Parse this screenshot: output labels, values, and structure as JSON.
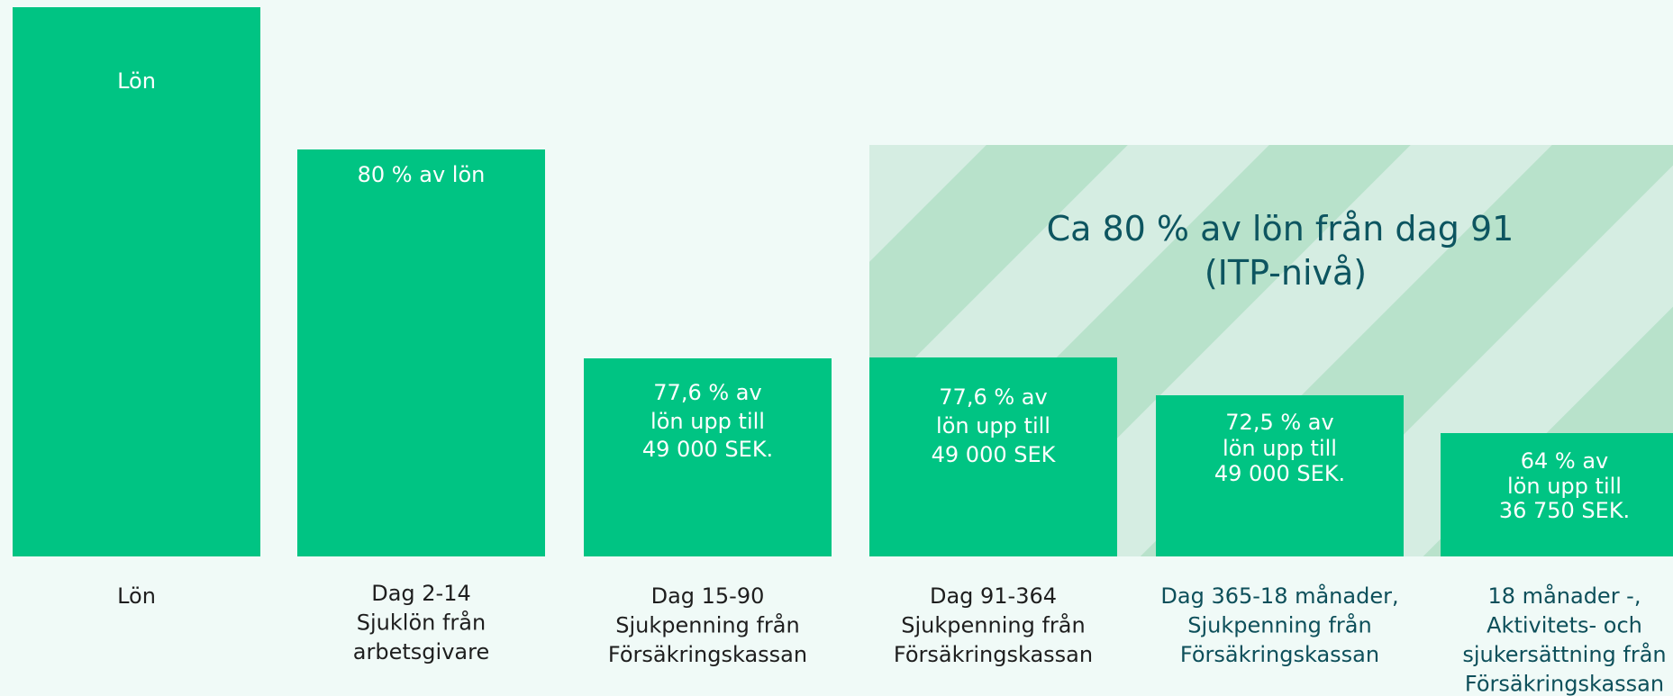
{
  "band": {
    "lines": [
      "Ca 80 % av lön från dag 91",
      "(ITP-nivå)"
    ]
  },
  "bars": [
    {
      "label": [
        "Lön"
      ],
      "caption": [
        "Lön"
      ]
    },
    {
      "label": [
        "80 % av lön"
      ],
      "caption": [
        "Dag 2-14",
        "Sjuklön från",
        "arbetsgivare"
      ]
    },
    {
      "label": [
        "77,6 % av",
        "lön upp till",
        "49 000 SEK."
      ],
      "caption": [
        "Dag 15-90",
        "Sjukpenning från",
        "Försäkringskassan"
      ]
    },
    {
      "label": [
        "77,6 % av",
        "lön upp till",
        "49 000 SEK"
      ],
      "caption": [
        "Dag 91-364",
        "Sjukpenning från",
        "Försäkringskassan"
      ]
    },
    {
      "label": [
        "72,5 % av",
        "lön upp till",
        "49 000 SEK."
      ],
      "caption": [
        "Dag 365-18 månader,",
        "Sjukpenning från",
        "Försäkringskassan"
      ]
    },
    {
      "label": [
        "64 % av",
        "lön upp till",
        "36 750 SEK."
      ],
      "caption": [
        "18 månader -,",
        "Aktivitets- och",
        "sjukersättning från",
        "Försäkringskassan"
      ]
    }
  ]
}
